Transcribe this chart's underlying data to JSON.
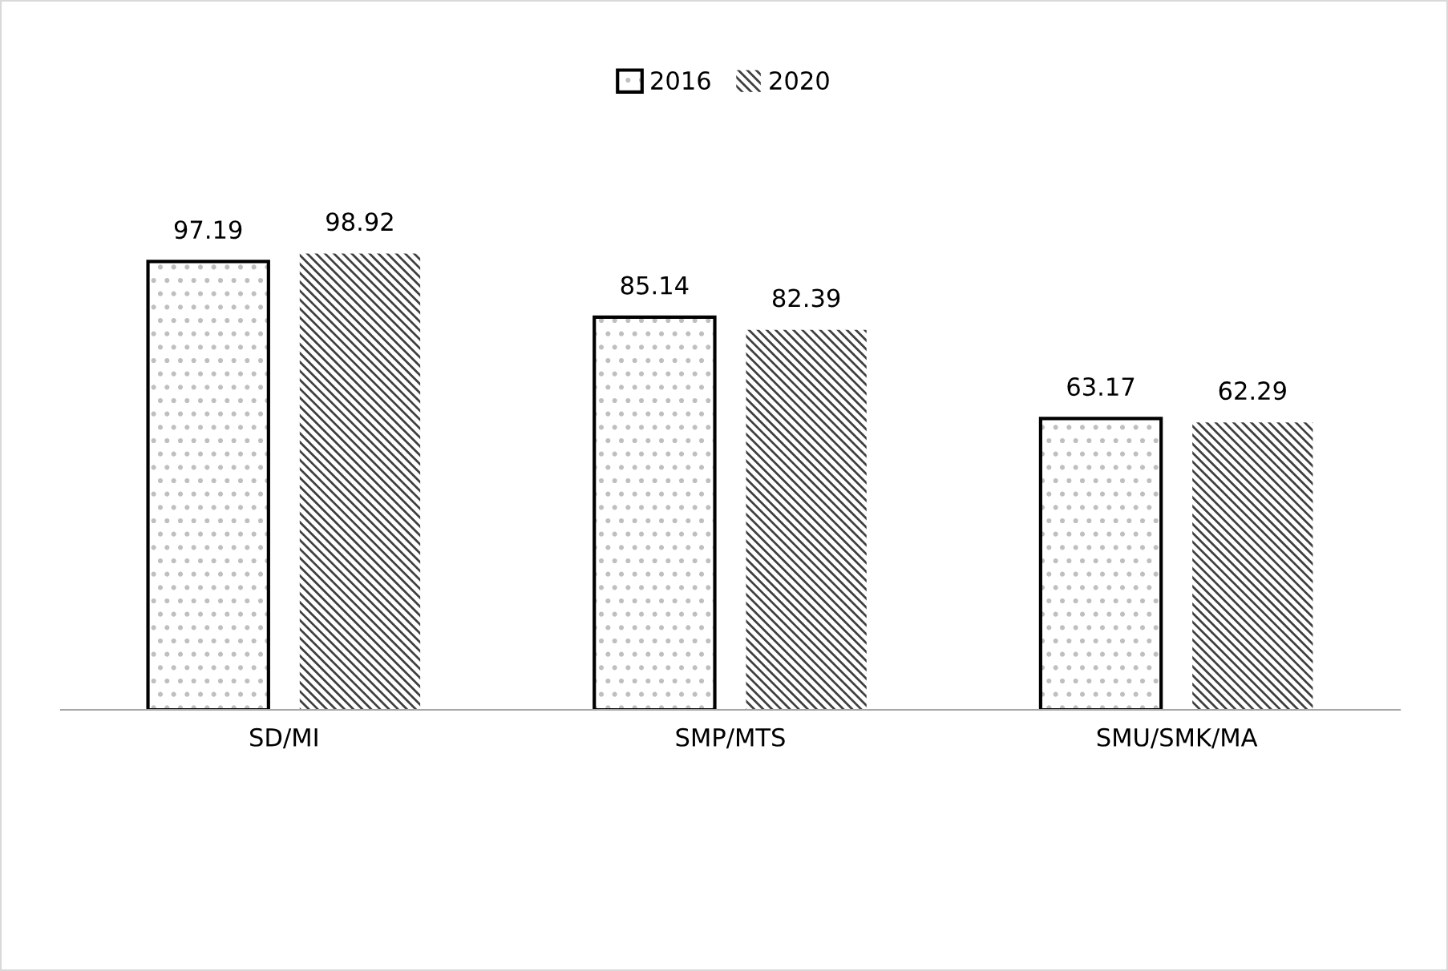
{
  "chart_data": {
    "type": "bar",
    "categories": [
      "SD/MI",
      "SMP/MTS",
      "SMU/SMK/MA"
    ],
    "series": [
      {
        "name": "2016",
        "color": "#000000",
        "values": [
          97.19,
          85.14,
          63.17
        ]
      },
      {
        "name": "2020",
        "color": "#404040",
        "values": [
          98.92,
          82.39,
          62.29
        ]
      }
    ],
    "data_labels": true,
    "grid": false,
    "legend": "top"
  }
}
